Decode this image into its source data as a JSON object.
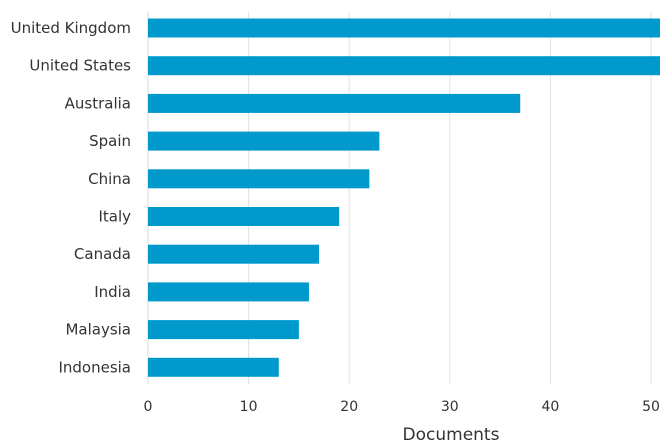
{
  "chart_data": {
    "type": "bar",
    "orientation": "horizontal",
    "categories": [
      "United Kingdom",
      "United States",
      "Australia",
      "Spain",
      "China",
      "Italy",
      "Canada",
      "India",
      "Malaysia",
      "Indonesia"
    ],
    "values": [
      51,
      51,
      37,
      23,
      22,
      19,
      17,
      16,
      15,
      13
    ],
    "xlabel": "Documents",
    "ylabel": "",
    "xlim": [
      0,
      50
    ],
    "xticks": [
      "0",
      "10",
      "20",
      "30",
      "40",
      "50"
    ],
    "grid": true,
    "bar_color": "#0099CC",
    "grid_color": "#E0E0E0"
  }
}
